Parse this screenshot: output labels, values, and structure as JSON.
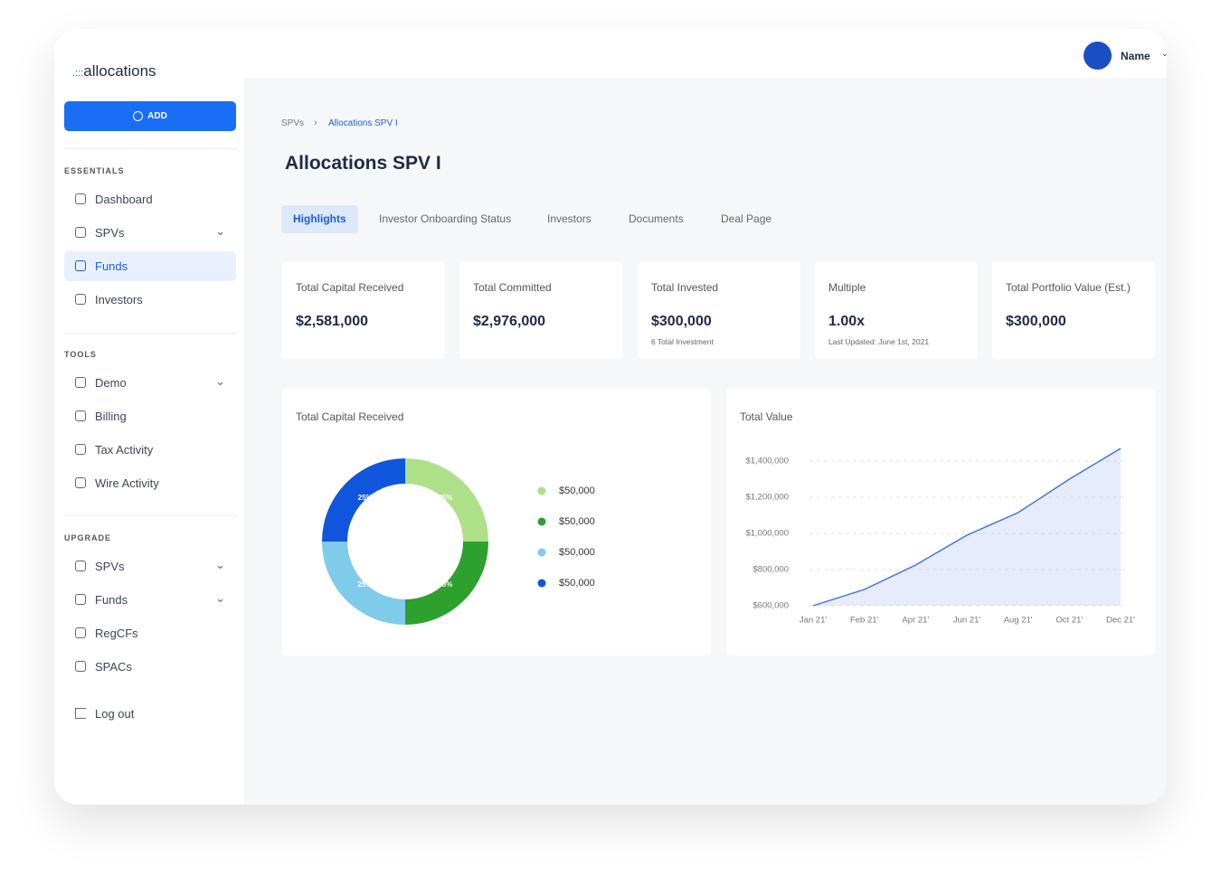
{
  "brand": "allocations",
  "user": {
    "name": "Name"
  },
  "sidebar": {
    "add_button": "ADD",
    "sections": [
      {
        "title": "ESSENTIALS",
        "items": [
          {
            "label": "Dashboard"
          },
          {
            "label": "SPVs",
            "expandable": true
          },
          {
            "label": "Funds",
            "active": true
          },
          {
            "label": "Investors"
          }
        ]
      },
      {
        "title": "TOOLS",
        "items": [
          {
            "label": "Demo",
            "expandable": true
          },
          {
            "label": "Billing"
          },
          {
            "label": "Tax Activity"
          },
          {
            "label": "Wire Activity"
          }
        ]
      },
      {
        "title": "UPGRADE",
        "items": [
          {
            "label": "SPVs",
            "expandable": true
          },
          {
            "label": "Funds",
            "expandable": true
          },
          {
            "label": "RegCFs"
          },
          {
            "label": "SPACs"
          }
        ]
      }
    ],
    "logout": "Log out"
  },
  "breadcrumb": [
    "SPVs",
    "Allocations SPV I"
  ],
  "page_title": "Allocations SPV I",
  "tabs": [
    {
      "label": "Highlights",
      "active": true
    },
    {
      "label": "Investor Onboarding Status"
    },
    {
      "label": "Investors"
    },
    {
      "label": "Documents"
    },
    {
      "label": "Deal Page"
    }
  ],
  "cards": [
    {
      "label": "Total Capital Received",
      "value": "$2,581,000"
    },
    {
      "label": "Total Committed",
      "value": "$2,976,000"
    },
    {
      "label": "Total Invested",
      "value": "$300,000",
      "note": "6 Total Investment"
    },
    {
      "label": "Multiple",
      "value": "1.00x",
      "note": "Last Updated: June 1st, 2021"
    },
    {
      "label": "Total Portfolio Value (Est.)",
      "value": "$300,000"
    }
  ],
  "chart_data": [
    {
      "type": "donut",
      "title": "Total Capital Received",
      "categories": [
        "$50,000",
        "$50,000",
        "$50,000",
        "$50,000"
      ],
      "values": [
        25,
        25,
        25,
        25
      ],
      "value_labels": [
        "25%",
        "25%",
        "25%",
        "25%"
      ],
      "colors": [
        "#aee08a",
        "#2ea02e",
        "#7ecbea",
        "#0f56dc"
      ]
    },
    {
      "type": "line",
      "title": "Total Value",
      "categories": [
        "Jan 21'",
        "Feb 21'",
        "Apr 21'",
        "Jun 21'",
        "Aug 21'",
        "Oct 21'",
        "Dec 21'"
      ],
      "series": [
        {
          "name": "Total Value",
          "color": "#3b6fe0",
          "values": [
            600000,
            690000,
            825000,
            990000,
            1115000,
            1300000,
            1470000
          ]
        }
      ],
      "ylim": [
        600000,
        1500000
      ],
      "yticks": [
        {
          "value": 600000,
          "label": "$600,000"
        },
        {
          "value": 800000,
          "label": "$800,000"
        },
        {
          "value": 1000000,
          "label": "$1,000,000"
        },
        {
          "value": 1200000,
          "label": "$1,200,000"
        },
        {
          "value": 1400000,
          "label": "$1,400,000"
        }
      ],
      "grid": true,
      "area": true
    }
  ]
}
